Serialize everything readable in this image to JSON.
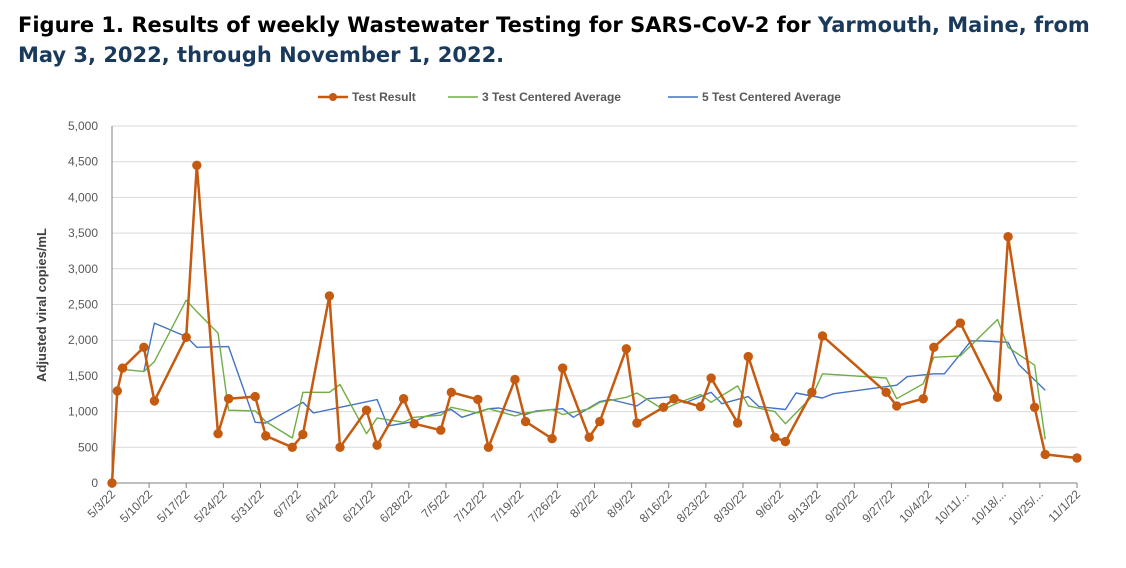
{
  "title_part1": "Figure 1. Results of weekly Wastewater Testing for SARS-CoV-2 for ",
  "title_part2": "Yarmouth, Maine, from May 3, 2022, through November 1, 2022.",
  "colors": {
    "test": "#c55a11",
    "avg3": "#70ad47",
    "avg5": "#4472c4",
    "grid": "#d9d9d9",
    "axis": "#7f7f7f"
  },
  "chart_data": {
    "type": "line",
    "title": "Figure 1. Results of weekly Wastewater Testing for SARS-CoV-2 for Yarmouth, Maine, from May 3, 2022, through November 1, 2022.",
    "xlabel": "",
    "ylabel": "Adjusted viral copies/mL",
    "ylim": [
      0,
      5000
    ],
    "yticks": [
      0,
      500,
      1000,
      1500,
      2000,
      2500,
      3000,
      3500,
      4000,
      4500,
      5000
    ],
    "ytick_labels": [
      "0",
      "500",
      "1,000",
      "1,500",
      "2,000",
      "2,500",
      "3,000",
      "3,500",
      "4,000",
      "4,500",
      "5,000"
    ],
    "xlim": [
      "2022-05-03",
      "2022-11-01"
    ],
    "xtick_labels": [
      "5/3/22",
      "5/10/22",
      "5/17/22",
      "5/24/22",
      "5/31/22",
      "6/7/22",
      "6/14/22",
      "6/21/22",
      "6/28/22",
      "7/5/22",
      "7/12/22",
      "7/19/22",
      "7/26/22",
      "8/2/22",
      "8/9/22",
      "8/16/22",
      "8/23/22",
      "8/30/22",
      "9/6/22",
      "9/13/22",
      "9/20/22",
      "9/27/22",
      "10/4/22",
      "10/11/...",
      "10/18/...",
      "10/25/...",
      "11/1/22"
    ],
    "grid": true,
    "legend_position": "top-center",
    "series": [
      {
        "name": "Test Result",
        "marker": "circle",
        "points": [
          [
            "2022-05-03",
            0
          ],
          [
            "2022-05-04",
            1290
          ],
          [
            "2022-05-05",
            1610
          ],
          [
            "2022-05-09",
            1900
          ],
          [
            "2022-05-11",
            1150
          ],
          [
            "2022-05-17",
            2040
          ],
          [
            "2022-05-19",
            4450
          ],
          [
            "2022-05-23",
            690
          ],
          [
            "2022-05-25",
            1180
          ],
          [
            "2022-05-30",
            1210
          ],
          [
            "2022-06-01",
            660
          ],
          [
            "2022-06-06",
            500
          ],
          [
            "2022-06-08",
            680
          ],
          [
            "2022-06-13",
            2620
          ],
          [
            "2022-06-15",
            500
          ],
          [
            "2022-06-20",
            1020
          ],
          [
            "2022-06-22",
            530
          ],
          [
            "2022-06-27",
            1180
          ],
          [
            "2022-06-29",
            830
          ],
          [
            "2022-07-04",
            740
          ],
          [
            "2022-07-06",
            1270
          ],
          [
            "2022-07-11",
            1170
          ],
          [
            "2022-07-13",
            500
          ],
          [
            "2022-07-18",
            1450
          ],
          [
            "2022-07-20",
            860
          ],
          [
            "2022-07-25",
            620
          ],
          [
            "2022-07-27",
            1610
          ],
          [
            "2022-08-01",
            640
          ],
          [
            "2022-08-03",
            860
          ],
          [
            "2022-08-08",
            1880
          ],
          [
            "2022-08-10",
            840
          ],
          [
            "2022-08-15",
            1060
          ],
          [
            "2022-08-17",
            1180
          ],
          [
            "2022-08-22",
            1070
          ],
          [
            "2022-08-24",
            1470
          ],
          [
            "2022-08-29",
            840
          ],
          [
            "2022-08-31",
            1770
          ],
          [
            "2022-09-05",
            640
          ],
          [
            "2022-09-07",
            580
          ],
          [
            "2022-09-12",
            1270
          ],
          [
            "2022-09-14",
            2060
          ],
          [
            "2022-09-26",
            1270
          ],
          [
            "2022-09-28",
            1080
          ],
          [
            "2022-10-03",
            1180
          ],
          [
            "2022-10-05",
            1900
          ],
          [
            "2022-10-10",
            2240
          ],
          [
            "2022-10-17",
            1200
          ],
          [
            "2022-10-19",
            3450
          ],
          [
            "2022-10-24",
            1060
          ],
          [
            "2022-10-26",
            400
          ],
          [
            "2022-11-01",
            350
          ]
        ]
      },
      {
        "name": "3 Test Centered Average",
        "marker": "none",
        "points": [
          [
            "2022-05-04",
            1600
          ],
          [
            "2022-05-09",
            1560
          ],
          [
            "2022-05-11",
            1700
          ],
          [
            "2022-05-17",
            2560
          ],
          [
            "2022-05-19",
            2400
          ],
          [
            "2022-05-23",
            2100
          ],
          [
            "2022-05-25",
            1020
          ],
          [
            "2022-05-30",
            1010
          ],
          [
            "2022-06-01",
            860
          ],
          [
            "2022-06-06",
            630
          ],
          [
            "2022-06-08",
            1270
          ],
          [
            "2022-06-13",
            1270
          ],
          [
            "2022-06-15",
            1380
          ],
          [
            "2022-06-20",
            690
          ],
          [
            "2022-06-22",
            910
          ],
          [
            "2022-06-27",
            850
          ],
          [
            "2022-06-29",
            920
          ],
          [
            "2022-07-04",
            950
          ],
          [
            "2022-07-06",
            1060
          ],
          [
            "2022-07-11",
            980
          ],
          [
            "2022-07-13",
            1040
          ],
          [
            "2022-07-18",
            940
          ],
          [
            "2022-07-20",
            980
          ],
          [
            "2022-07-25",
            1030
          ],
          [
            "2022-07-27",
            960
          ],
          [
            "2022-08-01",
            1040
          ],
          [
            "2022-08-03",
            1130
          ],
          [
            "2022-08-08",
            1200
          ],
          [
            "2022-08-10",
            1260
          ],
          [
            "2022-08-15",
            1030
          ],
          [
            "2022-08-17",
            1100
          ],
          [
            "2022-08-22",
            1240
          ],
          [
            "2022-08-24",
            1130
          ],
          [
            "2022-08-29",
            1360
          ],
          [
            "2022-08-31",
            1080
          ],
          [
            "2022-09-05",
            1000
          ],
          [
            "2022-09-07",
            830
          ],
          [
            "2022-09-12",
            1210
          ],
          [
            "2022-09-14",
            1530
          ],
          [
            "2022-09-26",
            1470
          ],
          [
            "2022-09-28",
            1180
          ],
          [
            "2022-10-03",
            1390
          ],
          [
            "2022-10-05",
            1760
          ],
          [
            "2022-10-10",
            1780
          ],
          [
            "2022-10-17",
            2290
          ],
          [
            "2022-10-19",
            1900
          ],
          [
            "2022-10-24",
            1650
          ],
          [
            "2022-10-26",
            610
          ]
        ]
      },
      {
        "name": "5 Test Centered Average",
        "marker": "none",
        "points": [
          [
            "2022-05-09",
            1560
          ],
          [
            "2022-05-11",
            2240
          ],
          [
            "2022-05-17",
            2050
          ],
          [
            "2022-05-19",
            1900
          ],
          [
            "2022-05-25",
            1910
          ],
          [
            "2022-05-30",
            850
          ],
          [
            "2022-06-01",
            840
          ],
          [
            "2022-06-08",
            1130
          ],
          [
            "2022-06-10",
            980
          ],
          [
            "2022-06-15",
            1060
          ],
          [
            "2022-06-17",
            1090
          ],
          [
            "2022-06-22",
            1170
          ],
          [
            "2022-06-24",
            800
          ],
          [
            "2022-06-29",
            860
          ],
          [
            "2022-07-01",
            930
          ],
          [
            "2022-07-06",
            1030
          ],
          [
            "2022-07-08",
            920
          ],
          [
            "2022-07-13",
            1040
          ],
          [
            "2022-07-15",
            1050
          ],
          [
            "2022-07-20",
            960
          ],
          [
            "2022-07-22",
            1010
          ],
          [
            "2022-07-27",
            1040
          ],
          [
            "2022-07-29",
            920
          ],
          [
            "2022-08-03",
            1140
          ],
          [
            "2022-08-05",
            1170
          ],
          [
            "2022-08-10",
            1080
          ],
          [
            "2022-08-12",
            1180
          ],
          [
            "2022-08-17",
            1210
          ],
          [
            "2022-08-19",
            1120
          ],
          [
            "2022-08-24",
            1270
          ],
          [
            "2022-08-26",
            1110
          ],
          [
            "2022-08-31",
            1210
          ],
          [
            "2022-09-02",
            1070
          ],
          [
            "2022-09-07",
            1030
          ],
          [
            "2022-09-09",
            1260
          ],
          [
            "2022-09-14",
            1190
          ],
          [
            "2022-09-16",
            1250
          ],
          [
            "2022-09-28",
            1370
          ],
          [
            "2022-09-30",
            1490
          ],
          [
            "2022-10-05",
            1530
          ],
          [
            "2022-10-07",
            1530
          ],
          [
            "2022-10-12",
            1990
          ],
          [
            "2022-10-14",
            1990
          ],
          [
            "2022-10-19",
            1970
          ],
          [
            "2022-10-21",
            1660
          ],
          [
            "2022-10-26",
            1300
          ]
        ]
      }
    ]
  }
}
